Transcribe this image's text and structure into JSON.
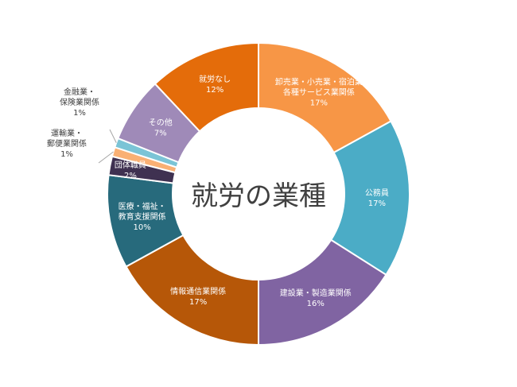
{
  "chart_data": {
    "type": "donut",
    "title": "就労の業種",
    "legend": "none",
    "slices": [
      {
        "label": [
          "卸売業・小売業・宿泊業",
          "各種サービス業関係"
        ],
        "value": 17,
        "display": "17%",
        "color": "#F79646"
      },
      {
        "label": [
          "公務員"
        ],
        "value": 17,
        "display": "17%",
        "color": "#4BACC6"
      },
      {
        "label": [
          "建設業・製造業関係"
        ],
        "value": 16,
        "display": "16%",
        "color": "#8064A2"
      },
      {
        "label": [
          "情報通信業関係"
        ],
        "value": 17,
        "display": "17%",
        "color": "#B65708"
      },
      {
        "label": [
          "医療・福祉・",
          "教育支援関係"
        ],
        "value": 10,
        "display": "10%",
        "color": "#276A7C"
      },
      {
        "label": [
          "団体職員"
        ],
        "value": 2,
        "display": "2%",
        "color": "#3F3151"
      },
      {
        "label": [
          "運輸業・",
          "郵便業関係"
        ],
        "value": 1,
        "display": "1%",
        "color": "#F9B074"
      },
      {
        "label": [
          "金融業・",
          "保険業関係"
        ],
        "value": 1,
        "display": "1%",
        "color": "#7BC4D6"
      },
      {
        "label": [
          "その他"
        ],
        "value": 7,
        "display": "7%",
        "color": "#9F8AB8"
      },
      {
        "label": [
          "就労なし"
        ],
        "value": 12,
        "display": "12%",
        "color": "#E46C0A"
      }
    ]
  }
}
